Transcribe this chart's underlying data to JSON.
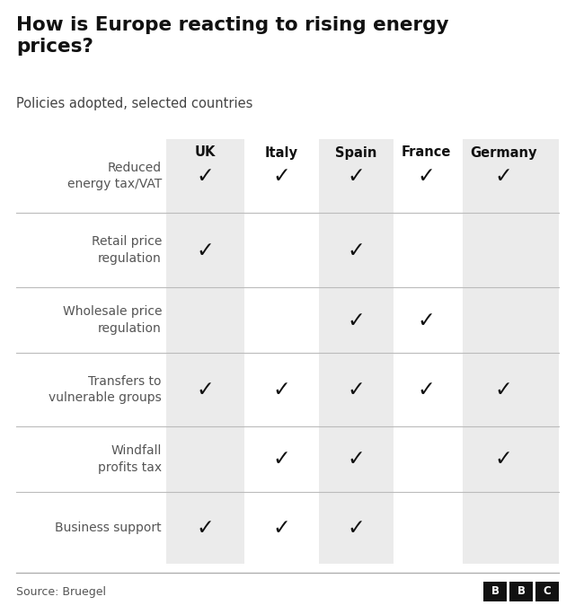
{
  "title": "How is Europe reacting to rising energy\nprices?",
  "subtitle": "Policies adopted, selected countries",
  "source": "Source: Bruegel",
  "columns": [
    "UK",
    "Italy",
    "Spain",
    "France",
    "Germany"
  ],
  "rows": [
    "Reduced\nenergy tax/VAT",
    "Retail price\nregulation",
    "Wholesale price\nregulation",
    "Transfers to\nvulnerable groups",
    "Windfall\nprofits tax",
    "Business support"
  ],
  "checks": [
    [
      1,
      1,
      1,
      1,
      1
    ],
    [
      1,
      0,
      1,
      0,
      0
    ],
    [
      0,
      0,
      1,
      1,
      0
    ],
    [
      1,
      1,
      1,
      1,
      1
    ],
    [
      0,
      1,
      1,
      0,
      1
    ],
    [
      1,
      1,
      1,
      0,
      0
    ]
  ],
  "shaded_cols": [
    0,
    2,
    4
  ],
  "col_bg_color": "#ebebeb",
  "row_line_color": "#bbbbbb",
  "check_color": "#111111",
  "title_color": "#111111",
  "subtitle_color": "#444444",
  "header_color": "#111111",
  "row_label_color": "#555555",
  "source_color": "#555555",
  "bg_color": "#ffffff",
  "bbc_box_color": "#111111",
  "bbc_text_color": "#ffffff",
  "title_fontsize": 15.5,
  "subtitle_fontsize": 10.5,
  "header_fontsize": 10.5,
  "row_label_fontsize": 10,
  "check_fontsize": 17,
  "source_fontsize": 9
}
